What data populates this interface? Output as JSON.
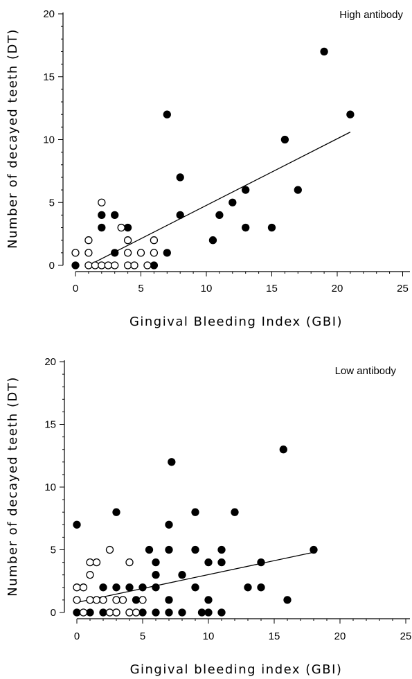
{
  "chart_data": [
    {
      "type": "scatter",
      "title": "High antibody",
      "xlabel": "Gingival Bleeding Index (GBI)",
      "ylabel": "Number of decayed teeth (DT)",
      "xlim": [
        0,
        25
      ],
      "ylim": [
        0,
        20
      ],
      "xticks": [
        "0",
        "5",
        "10",
        "15",
        "20",
        "25"
      ],
      "yticks": [
        "0",
        "5",
        "10",
        "15",
        "20"
      ],
      "grid": false,
      "marker_colors": {
        "filled": "#000000",
        "open": "#ffffff"
      },
      "series": [
        {
          "marker": "filled",
          "points": [
            [
              0,
              0
            ],
            [
              2,
              3
            ],
            [
              2,
              4
            ],
            [
              3,
              4
            ],
            [
              3,
              1
            ],
            [
              4,
              3
            ],
            [
              6,
              0
            ],
            [
              7,
              12
            ],
            [
              7,
              1
            ],
            [
              8,
              7
            ],
            [
              8,
              4
            ],
            [
              10.5,
              2
            ],
            [
              11,
              4
            ],
            [
              12,
              5
            ],
            [
              13,
              6
            ],
            [
              13,
              3
            ],
            [
              15,
              3
            ],
            [
              16,
              10
            ],
            [
              17,
              6
            ],
            [
              19,
              17
            ],
            [
              21,
              12
            ]
          ]
        },
        {
          "marker": "open",
          "points": [
            [
              0,
              1
            ],
            [
              1,
              0
            ],
            [
              1,
              1
            ],
            [
              1,
              2
            ],
            [
              1.5,
              0
            ],
            [
              2,
              0
            ],
            [
              2,
              5
            ],
            [
              2.5,
              0
            ],
            [
              3,
              0
            ],
            [
              3.5,
              3
            ],
            [
              4,
              0
            ],
            [
              4,
              1
            ],
            [
              4,
              2
            ],
            [
              4.5,
              0
            ],
            [
              5,
              1
            ],
            [
              5.5,
              0
            ],
            [
              6,
              1
            ],
            [
              6,
              2
            ]
          ]
        }
      ],
      "regression_line": [
        [
          1,
          0
        ],
        [
          21,
          10.6
        ]
      ]
    },
    {
      "type": "scatter",
      "title": "Low antibody",
      "xlabel": "Gingival bleeding index (GBI)",
      "ylabel": "Number of decayed teeth (DT)",
      "xlim": [
        0,
        25
      ],
      "ylim": [
        0,
        20
      ],
      "xticks": [
        "0",
        "5",
        "10",
        "15",
        "20",
        "25"
      ],
      "yticks": [
        "0",
        "5",
        "10",
        "15",
        "20"
      ],
      "grid": false,
      "marker_colors": {
        "filled": "#000000",
        "open": "#ffffff"
      },
      "series": [
        {
          "marker": "filled",
          "points": [
            [
              0,
              7
            ],
            [
              0,
              0
            ],
            [
              1,
              0
            ],
            [
              2,
              2
            ],
            [
              2,
              0
            ],
            [
              3,
              8
            ],
            [
              3,
              2
            ],
            [
              3,
              0
            ],
            [
              4,
              2
            ],
            [
              4,
              0
            ],
            [
              4.5,
              1
            ],
            [
              5,
              2
            ],
            [
              5,
              0
            ],
            [
              5.5,
              5
            ],
            [
              6,
              4
            ],
            [
              6,
              3
            ],
            [
              6,
              2
            ],
            [
              6,
              0
            ],
            [
              7,
              7
            ],
            [
              7,
              5
            ],
            [
              7,
              1
            ],
            [
              7,
              0
            ],
            [
              7.2,
              12
            ],
            [
              8,
              3
            ],
            [
              8,
              0
            ],
            [
              9,
              8
            ],
            [
              9,
              5
            ],
            [
              9,
              2
            ],
            [
              9.5,
              0
            ],
            [
              10,
              4
            ],
            [
              10,
              1
            ],
            [
              10,
              0
            ],
            [
              11,
              5
            ],
            [
              11,
              4
            ],
            [
              11,
              0
            ],
            [
              12,
              8
            ],
            [
              13,
              2
            ],
            [
              14,
              4
            ],
            [
              14,
              2
            ],
            [
              15.7,
              13
            ],
            [
              16,
              1
            ],
            [
              18,
              5
            ]
          ]
        },
        {
          "marker": "open",
          "points": [
            [
              0,
              2
            ],
            [
              0,
              1
            ],
            [
              0.5,
              2
            ],
            [
              0.5,
              0
            ],
            [
              1,
              4
            ],
            [
              1,
              3
            ],
            [
              1,
              1
            ],
            [
              1.5,
              4
            ],
            [
              1.5,
              1
            ],
            [
              2,
              1
            ],
            [
              2.5,
              5
            ],
            [
              2.5,
              0
            ],
            [
              3,
              1
            ],
            [
              3,
              0
            ],
            [
              3.5,
              1
            ],
            [
              4,
              4
            ],
            [
              4,
              0
            ],
            [
              4.5,
              0
            ],
            [
              5,
              1
            ]
          ]
        }
      ],
      "regression_line": [
        [
          0,
          0.8
        ],
        [
          18,
          4.8
        ]
      ]
    }
  ]
}
